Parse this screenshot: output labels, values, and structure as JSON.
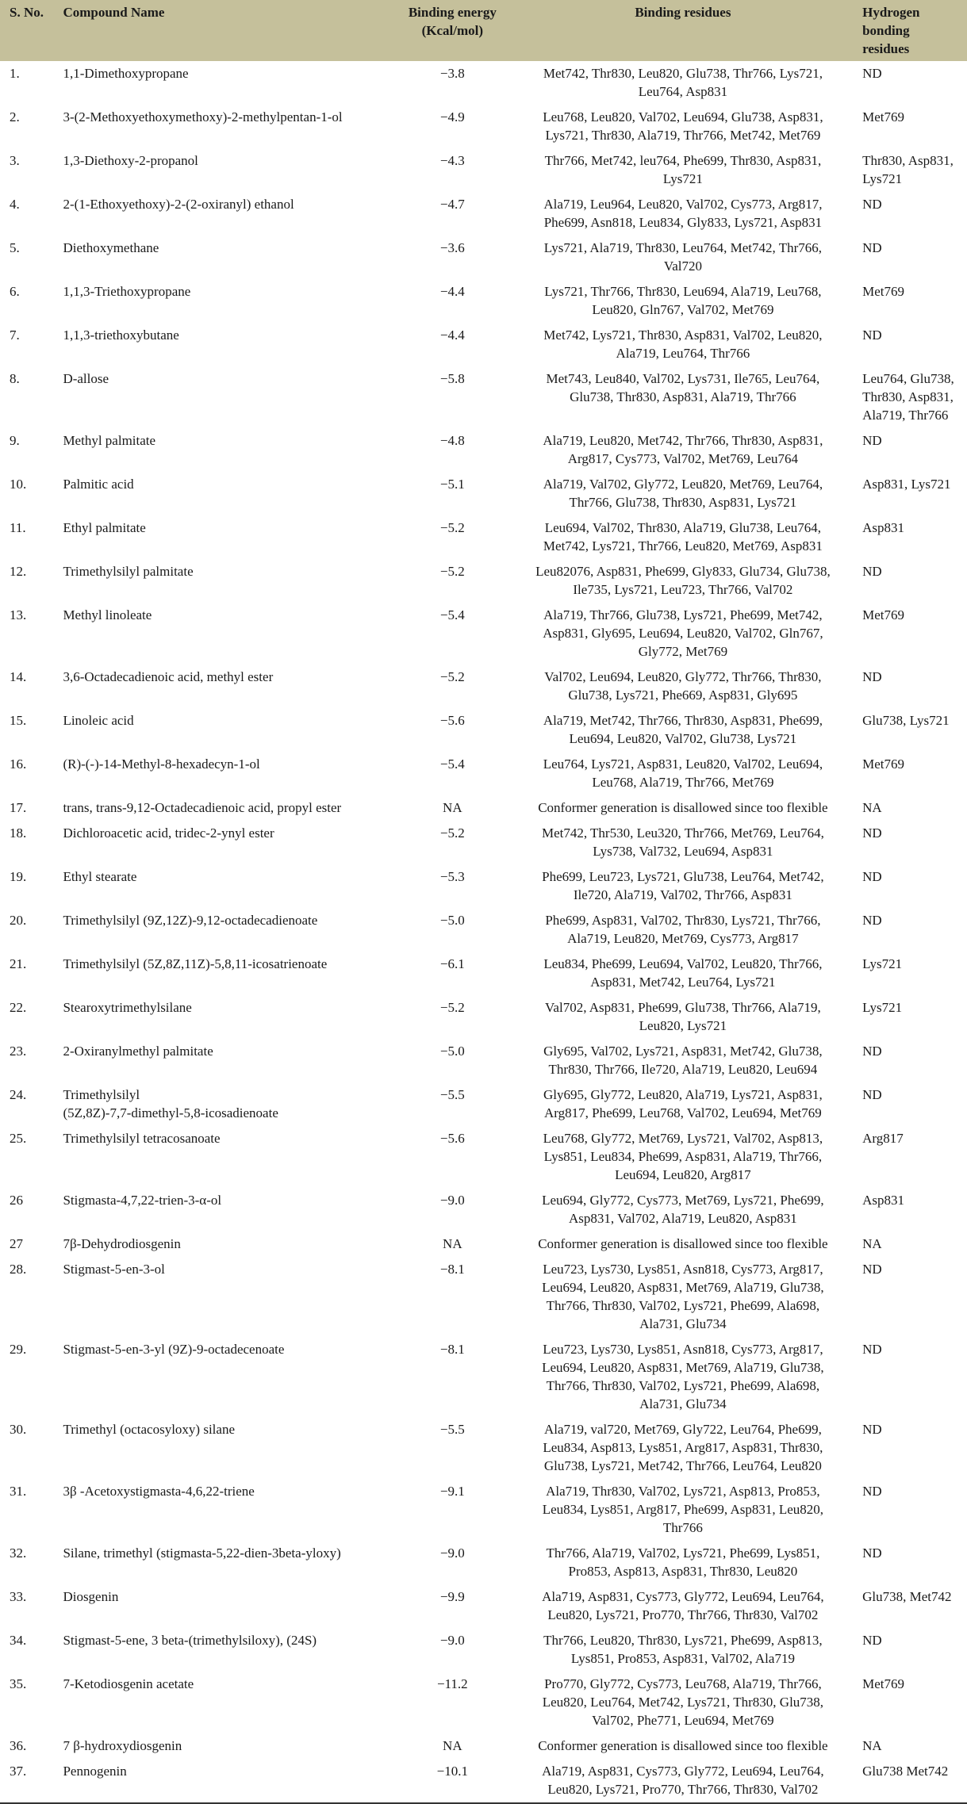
{
  "colors": {
    "header_bg": "#c5c09b",
    "text": "#1a1a1a"
  },
  "table": {
    "headers": {
      "sno": "S. No.",
      "name": "Compound Name",
      "energy": [
        "Binding energy",
        "(Kcal/mol)"
      ],
      "residues": "Binding residues",
      "hbond": [
        "Hydrogen",
        "bonding",
        "residues"
      ]
    },
    "rows": [
      {
        "sno": "1.",
        "name": [
          "1,1-Dimethoxypropane"
        ],
        "energy": "−3.8",
        "residues": [
          "Met742, Thr830, Leu820, Glu738, Thr766, Lys721,",
          "Leu764, Asp831"
        ],
        "hbond": [
          "ND"
        ]
      },
      {
        "sno": "2.",
        "name": [
          "3-(2-Methoxyethoxymethoxy)-2-methylpentan-1-ol"
        ],
        "energy": "−4.9",
        "residues": [
          "Leu768, Leu820, Val702, Leu694, Glu738, Asp831,",
          "Lys721, Thr830, Ala719, Thr766, Met742, Met769"
        ],
        "hbond": [
          "Met769"
        ]
      },
      {
        "sno": "3.",
        "name": [
          "1,3-Diethoxy-2-propanol"
        ],
        "energy": "−4.3",
        "residues": [
          "Thr766, Met742, leu764, Phe699, Thr830, Asp831,",
          "Lys721"
        ],
        "hbond": [
          "Thr830, Asp831,",
          "Lys721"
        ]
      },
      {
        "sno": "4.",
        "name": [
          "2-(1-Ethoxyethoxy)-2-(2-oxiranyl) ethanol"
        ],
        "energy": "−4.7",
        "residues": [
          "Ala719, Leu964, Leu820, Val702, Cys773, Arg817,",
          "Phe699, Asn818, Leu834, Gly833, Lys721, Asp831"
        ],
        "hbond": [
          "ND"
        ]
      },
      {
        "sno": "5.",
        "name": [
          "Diethoxymethane"
        ],
        "energy": "−3.6",
        "residues": [
          "Lys721, Ala719, Thr830, Leu764, Met742, Thr766,",
          "Val720"
        ],
        "hbond": [
          "ND"
        ]
      },
      {
        "sno": "6.",
        "name": [
          "1,1,3-Triethoxypropane"
        ],
        "energy": "−4.4",
        "residues": [
          "Lys721, Thr766, Thr830, Leu694, Ala719, Leu768,",
          "Leu820, Gln767, Val702, Met769"
        ],
        "hbond": [
          "Met769"
        ]
      },
      {
        "sno": "7.",
        "name": [
          "1,1,3-triethoxybutane"
        ],
        "energy": "−4.4",
        "residues": [
          "Met742, Lys721, Thr830, Asp831, Val702, Leu820,",
          "Ala719, Leu764, Thr766"
        ],
        "hbond": [
          "ND"
        ]
      },
      {
        "sno": "8.",
        "name": [
          "D-allose"
        ],
        "energy": "−5.8",
        "residues": [
          "Met743, Leu840, Val702, Lys731, Ile765, Leu764,",
          "Glu738, Thr830, Asp831, Ala719, Thr766"
        ],
        "hbond": [
          "Leu764, Glu738,",
          "Thr830, Asp831,",
          "Ala719, Thr766"
        ]
      },
      {
        "sno": "9.",
        "name": [
          "Methyl palmitate"
        ],
        "energy": "−4.8",
        "residues": [
          "Ala719, Leu820, Met742, Thr766, Thr830, Asp831,",
          "Arg817, Cys773, Val702, Met769, Leu764"
        ],
        "hbond": [
          "ND"
        ]
      },
      {
        "sno": "10.",
        "name": [
          "Palmitic acid"
        ],
        "energy": "−5.1",
        "residues": [
          "Ala719, Val702, Gly772, Leu820, Met769, Leu764,",
          "Thr766, Glu738, Thr830, Asp831, Lys721"
        ],
        "hbond": [
          "Asp831, Lys721"
        ]
      },
      {
        "sno": "11.",
        "name": [
          "Ethyl palmitate"
        ],
        "energy": "−5.2",
        "residues": [
          "Leu694, Val702, Thr830, Ala719, Glu738, Leu764,",
          "Met742, Lys721, Thr766, Leu820, Met769, Asp831"
        ],
        "hbond": [
          "Asp831"
        ]
      },
      {
        "sno": "12.",
        "name": [
          "Trimethylsilyl palmitate"
        ],
        "energy": "−5.2",
        "residues": [
          "Leu82076, Asp831, Phe699, Gly833, Glu734, Glu738,",
          "Ile735, Lys721, Leu723, Thr766, Val702"
        ],
        "hbond": [
          "ND"
        ]
      },
      {
        "sno": "13.",
        "name": [
          "Methyl linoleate"
        ],
        "energy": "−5.4",
        "residues": [
          "Ala719, Thr766, Glu738, Lys721, Phe699, Met742,",
          "Asp831, Gly695, Leu694, Leu820, Val702, Gln767,",
          "Gly772, Met769"
        ],
        "hbond": [
          "Met769"
        ]
      },
      {
        "sno": "14.",
        "name": [
          "3,6-Octadecadienoic acid, methyl ester"
        ],
        "energy": "−5.2",
        "residues": [
          "Val702, Leu694, Leu820, Gly772, Thr766, Thr830,",
          "Glu738, Lys721, Phe669, Asp831, Gly695"
        ],
        "hbond": [
          "ND"
        ]
      },
      {
        "sno": "15.",
        "name": [
          "Linoleic acid"
        ],
        "energy": "−5.6",
        "residues": [
          "Ala719, Met742, Thr766, Thr830, Asp831, Phe699,",
          "Leu694, Leu820, Val702, Glu738, Lys721"
        ],
        "hbond": [
          "Glu738, Lys721"
        ]
      },
      {
        "sno": "16.",
        "name": [
          "(R)-(-)-14-Methyl-8-hexadecyn-1-ol"
        ],
        "energy": "−5.4",
        "residues": [
          "Leu764, Lys721, Asp831, Leu820, Val702, Leu694,",
          "Leu768, Ala719, Thr766, Met769"
        ],
        "hbond": [
          "Met769"
        ]
      },
      {
        "sno": "17.",
        "name": [
          "trans, trans-9,12-Octadecadienoic acid, propyl ester"
        ],
        "energy": "NA",
        "residues": [
          "Conformer generation is disallowed since too flexible"
        ],
        "hbond": [
          "NA"
        ]
      },
      {
        "sno": "18.",
        "name": [
          "Dichloroacetic acid, tridec-2-ynyl ester"
        ],
        "energy": "−5.2",
        "residues": [
          "Met742, Thr530, Leu320, Thr766, Met769, Leu764,",
          "Lys738, Val732, Leu694, Asp831"
        ],
        "hbond": [
          "ND"
        ]
      },
      {
        "sno": "19.",
        "name": [
          "Ethyl stearate"
        ],
        "energy": "−5.3",
        "residues": [
          "Phe699, Leu723, Lys721, Glu738, Leu764, Met742,",
          "Ile720, Ala719, Val702, Thr766, Asp831"
        ],
        "hbond": [
          "ND"
        ]
      },
      {
        "sno": "20.",
        "name": [
          "Trimethylsilyl (9Z,12Z)-9,12-octadecadienoate"
        ],
        "energy": "−5.0",
        "residues": [
          "Phe699, Asp831, Val702, Thr830, Lys721, Thr766,",
          "Ala719, Leu820, Met769, Cys773, Arg817"
        ],
        "hbond": [
          "ND"
        ]
      },
      {
        "sno": "21.",
        "name": [
          "Trimethylsilyl (5Z,8Z,11Z)-5,8,11-icosatrienoate"
        ],
        "energy": "−6.1",
        "residues": [
          "Leu834, Phe699, Leu694, Val702, Leu820, Thr766,",
          "Asp831, Met742, Leu764, Lys721"
        ],
        "hbond": [
          "Lys721"
        ]
      },
      {
        "sno": "22.",
        "name": [
          "Stearoxytrimethylsilane"
        ],
        "energy": "−5.2",
        "residues": [
          "Val702, Asp831, Phe699, Glu738, Thr766, Ala719,",
          "Leu820, Lys721"
        ],
        "hbond": [
          "Lys721"
        ]
      },
      {
        "sno": "23.",
        "name": [
          "2-Oxiranylmethyl palmitate"
        ],
        "energy": "−5.0",
        "residues": [
          "Gly695, Val702, Lys721, Asp831, Met742, Glu738,",
          "Thr830, Thr766, Ile720, Ala719, Leu820, Leu694"
        ],
        "hbond": [
          "ND"
        ]
      },
      {
        "sno": "24.",
        "name": [
          "Trimethylsilyl",
          "(5Z,8Z)-7,7-dimethyl-5,8-icosadienoate"
        ],
        "energy": "−5.5",
        "residues": [
          "Gly695, Gly772, Leu820, Ala719, Lys721, Asp831,",
          "Arg817, Phe699, Leu768, Val702, Leu694, Met769"
        ],
        "hbond": [
          "ND"
        ]
      },
      {
        "sno": "25.",
        "name": [
          "Trimethylsilyl tetracosanoate"
        ],
        "energy": "−5.6",
        "residues": [
          "Leu768, Gly772, Met769, Lys721, Val702, Asp813,",
          "Lys851, Leu834, Phe699, Asp831, Ala719, Thr766,",
          "Leu694, Leu820, Arg817"
        ],
        "hbond": [
          "Arg817"
        ]
      },
      {
        "sno": "26",
        "name": [
          "Stigmasta-4,7,22-trien-3-α-ol"
        ],
        "energy": "−9.0",
        "residues": [
          "Leu694, Gly772, Cys773, Met769, Lys721, Phe699,",
          "Asp831, Val702, Ala719, Leu820, Asp831"
        ],
        "hbond": [
          "Asp831"
        ]
      },
      {
        "sno": "27",
        "name": [
          "7β-Dehydrodiosgenin"
        ],
        "energy": "NA",
        "residues": [
          "Conformer generation is disallowed since too flexible"
        ],
        "hbond": [
          "NA"
        ]
      },
      {
        "sno": "28.",
        "name": [
          "Stigmast-5-en-3-ol"
        ],
        "energy": "−8.1",
        "residues": [
          "Leu723, Lys730, Lys851, Asn818, Cys773, Arg817,",
          "Leu694, Leu820, Asp831, Met769, Ala719, Glu738,",
          "Thr766, Thr830, Val702, Lys721, Phe699, Ala698,",
          "Ala731, Glu734"
        ],
        "hbond": [
          "ND"
        ]
      },
      {
        "sno": "29.",
        "name": [
          "Stigmast-5-en-3-yl (9Z)-9-octadecenoate"
        ],
        "energy": "−8.1",
        "residues": [
          "Leu723, Lys730, Lys851, Asn818, Cys773, Arg817,",
          "Leu694, Leu820, Asp831, Met769, Ala719, Glu738,",
          "Thr766, Thr830, Val702, Lys721, Phe699, Ala698,",
          "Ala731, Glu734"
        ],
        "hbond": [
          "ND"
        ]
      },
      {
        "sno": "30.",
        "name": [
          "Trimethyl (octacosyloxy) silane"
        ],
        "energy": "−5.5",
        "residues": [
          "Ala719, val720, Met769, Gly722, Leu764, Phe699,",
          "Leu834, Asp813, Lys851, Arg817, Asp831, Thr830,",
          "Glu738, Lys721, Met742, Thr766, Leu764, Leu820"
        ],
        "hbond": [
          "ND"
        ]
      },
      {
        "sno": "31.",
        "name": [
          "3β -Acetoxystigmasta-4,6,22-triene"
        ],
        "energy": "−9.1",
        "residues": [
          "Ala719, Thr830, Val702, Lys721, Asp813, Pro853,",
          "Leu834, Lys851, Arg817, Phe699, Asp831, Leu820,",
          "Thr766"
        ],
        "hbond": [
          "ND"
        ]
      },
      {
        "sno": "32.",
        "name": [
          "Silane, trimethyl (stigmasta-5,22-dien-3beta-yloxy)"
        ],
        "energy": "−9.0",
        "residues": [
          "Thr766, Ala719, Val702, Lys721, Phe699, Lys851,",
          "Pro853, Asp813, Asp831, Thr830, Leu820"
        ],
        "hbond": [
          "ND"
        ]
      },
      {
        "sno": "33.",
        "name": [
          "Diosgenin"
        ],
        "energy": "−9.9",
        "residues": [
          "Ala719, Asp831, Cys773, Gly772, Leu694, Leu764,",
          "Leu820, Lys721, Pro770, Thr766, Thr830, Val702"
        ],
        "hbond": [
          "Glu738, Met742"
        ]
      },
      {
        "sno": "34.",
        "name": [
          "Stigmast-5-ene, 3 beta-(trimethylsiloxy), (24S)"
        ],
        "energy": "−9.0",
        "residues": [
          "Thr766, Leu820, Thr830, Lys721, Phe699, Asp813,",
          "Lys851, Pro853, Asp831, Val702, Ala719"
        ],
        "hbond": [
          "ND"
        ]
      },
      {
        "sno": "35.",
        "name": [
          "7-Ketodiosgenin acetate"
        ],
        "energy": "−11.2",
        "residues": [
          "Pro770, Gly772, Cys773, Leu768, Ala719, Thr766,",
          "Leu820, Leu764, Met742, Lys721, Thr830, Glu738,",
          "Val702, Phe771, Leu694, Met769"
        ],
        "hbond": [
          "Met769"
        ]
      },
      {
        "sno": "36.",
        "name": [
          "7 β-hydroxydiosgenin"
        ],
        "energy": "NA",
        "residues": [
          "Conformer generation is disallowed since too flexible"
        ],
        "hbond": [
          "NA"
        ]
      },
      {
        "sno": "37.",
        "name": [
          "Pennogenin"
        ],
        "energy": "−10.1",
        "residues": [
          "Ala719, Asp831, Cys773, Gly772, Leu694, Leu764,",
          "Leu820, Lys721, Pro770, Thr766, Thr830, Val702"
        ],
        "hbond": [
          "Glu738 Met742"
        ]
      }
    ]
  }
}
